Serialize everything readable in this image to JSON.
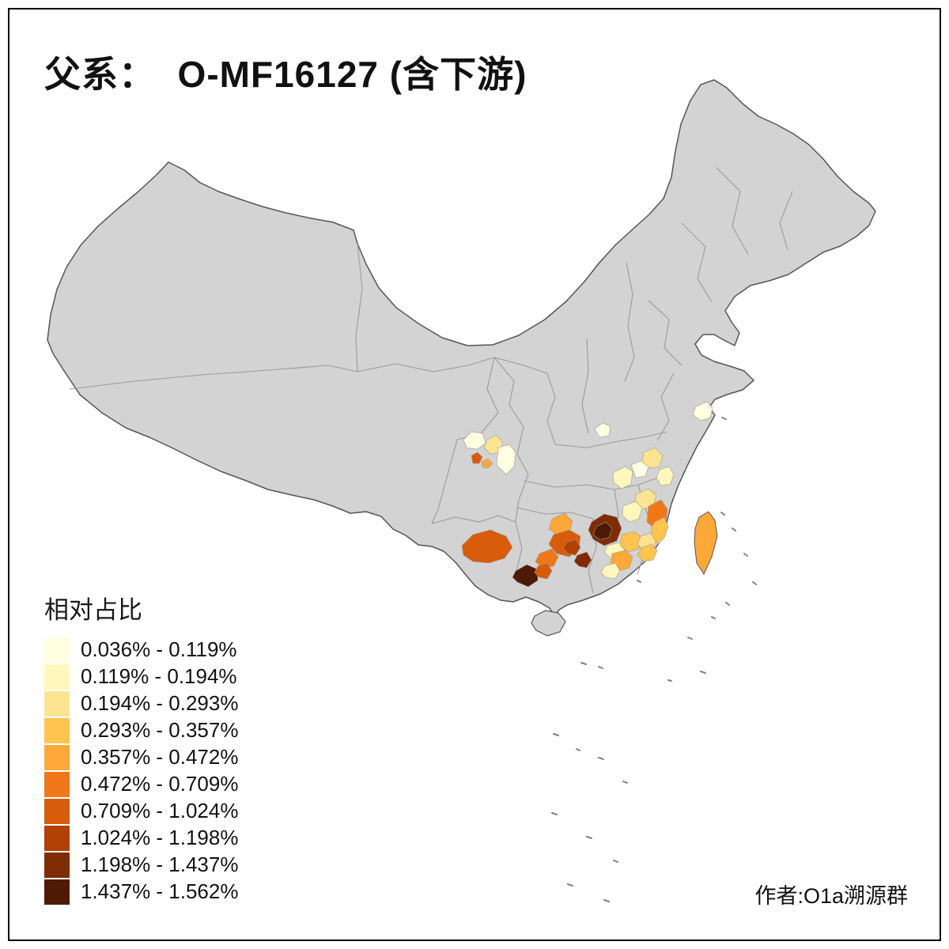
{
  "title": "父系：  O-MF16127 (含下游)",
  "legend": {
    "title": "相对占比",
    "items": [
      {
        "label": "0.036% - 0.119%",
        "color": "#FFFFE1"
      },
      {
        "label": "0.119% - 0.194%",
        "color": "#FFF7BC"
      },
      {
        "label": "0.194% - 0.293%",
        "color": "#FEE391"
      },
      {
        "label": "0.293% - 0.357%",
        "color": "#FEC44F"
      },
      {
        "label": "0.357% - 0.472%",
        "color": "#FDA838"
      },
      {
        "label": "0.472% - 0.709%",
        "color": "#F07818"
      },
      {
        "label": "0.709% - 1.024%",
        "color": "#D85C09"
      },
      {
        "label": "1.024% - 1.198%",
        "color": "#B24103"
      },
      {
        "label": "1.198% - 1.437%",
        "color": "#7F2C05"
      },
      {
        "label": "1.437% - 1.562%",
        "color": "#4E1A04"
      }
    ]
  },
  "credit": "作者:O1a溯源群",
  "map": {
    "land_color": "#d3d3d3",
    "province_line_color": "#9a9a9a",
    "outline_color": "#555555",
    "sea_color": "#ffffff"
  }
}
